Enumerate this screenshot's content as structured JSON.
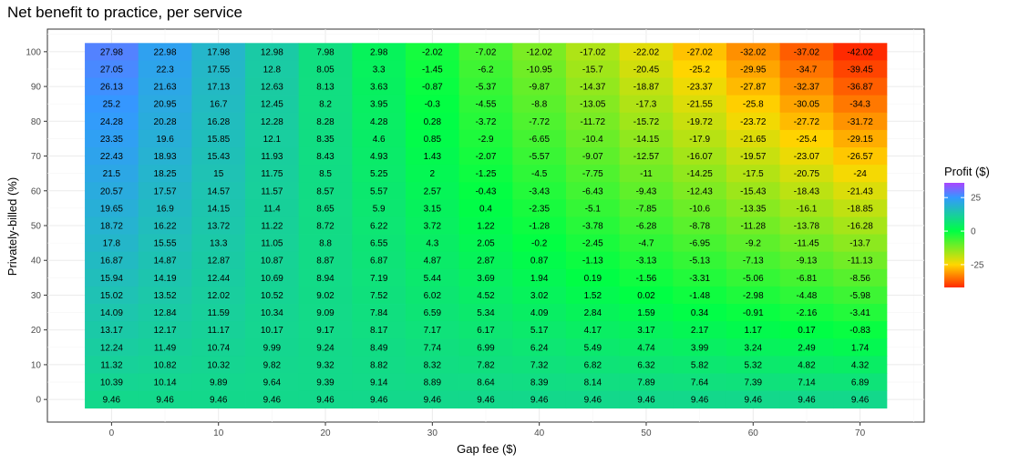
{
  "chart_data": {
    "type": "heatmap",
    "title": "Net benefit to practice, per service",
    "xlabel": "Gap fee ($)",
    "ylabel": "Privately-billed (%)",
    "x": [
      0,
      5,
      10,
      15,
      20,
      25,
      30,
      35,
      40,
      45,
      50,
      55,
      60,
      65,
      70
    ],
    "y": [
      0,
      5,
      10,
      15,
      20,
      25,
      30,
      35,
      40,
      45,
      50,
      55,
      60,
      65,
      70,
      75,
      80,
      85,
      90,
      95,
      100
    ],
    "x_ticks": [
      0,
      10,
      20,
      30,
      40,
      50,
      60,
      70
    ],
    "x_tick_labels": [
      "0",
      "10",
      "20",
      "30",
      "40",
      "50",
      "60",
      "70"
    ],
    "y_ticks": [
      0,
      10,
      20,
      30,
      40,
      50,
      60,
      70,
      80,
      90,
      100
    ],
    "y_tick_labels": [
      "0",
      "10",
      "20",
      "30",
      "40",
      "50",
      "60",
      "70",
      "80",
      "90",
      "100"
    ],
    "xlim": [
      -6,
      76
    ],
    "ylim": [
      -6.5,
      106.5
    ],
    "grid": true,
    "legend": {
      "title": "Profit ($)",
      "position": "right",
      "ticks": [
        25,
        0,
        -25
      ],
      "tick_labels": [
        "25",
        "0",
        "-25"
      ],
      "range": [
        -42.02,
        36
      ]
    },
    "colors": {
      "low": "#ff2a00",
      "mid_low": "#ffd700",
      "zero": "#00ff44",
      "mid_high": "#3399ff",
      "high": "#aa44ff"
    },
    "rows": [
      {
        "y": 100,
        "labels": [
          "27.98",
          "22.98",
          "17.98",
          "12.98",
          "7.98",
          "2.98",
          "-2.02",
          "-7.02",
          "-12.02",
          "-17.02",
          "-22.02",
          "-27.02",
          "-32.02",
          "-37.02",
          "-42.02"
        ]
      },
      {
        "y": 95,
        "labels": [
          "27.05",
          "22.3",
          "17.55",
          "12.8",
          "8.05",
          "3.3",
          "-1.45",
          "-6.2",
          "-10.95",
          "-15.7",
          "-20.45",
          "-25.2",
          "-29.95",
          "-34.7",
          "-39.45"
        ]
      },
      {
        "y": 90,
        "labels": [
          "26.13",
          "21.63",
          "17.13",
          "12.63",
          "8.13",
          "3.63",
          "-0.87",
          "-5.37",
          "-9.87",
          "-14.37",
          "-18.87",
          "-23.37",
          "-27.87",
          "-32.37",
          "-36.87"
        ]
      },
      {
        "y": 85,
        "labels": [
          "25.2",
          "20.95",
          "16.7",
          "12.45",
          "8.2",
          "3.95",
          "-0.3",
          "-4.55",
          "-8.8",
          "-13.05",
          "-17.3",
          "-21.55",
          "-25.8",
          "-30.05",
          "-34.3"
        ]
      },
      {
        "y": 80,
        "labels": [
          "24.28",
          "20.28",
          "16.28",
          "12.28",
          "8.28",
          "4.28",
          "0.28",
          "-3.72",
          "-7.72",
          "-11.72",
          "-15.72",
          "-19.72",
          "-23.72",
          "-27.72",
          "-31.72"
        ]
      },
      {
        "y": 75,
        "labels": [
          "23.35",
          "19.6",
          "15.85",
          "12.1",
          "8.35",
          "4.6",
          "0.85",
          "-2.9",
          "-6.65",
          "-10.4",
          "-14.15",
          "-17.9",
          "-21.65",
          "-25.4",
          "-29.15"
        ]
      },
      {
        "y": 70,
        "labels": [
          "22.43",
          "18.93",
          "15.43",
          "11.93",
          "8.43",
          "4.93",
          "1.43",
          "-2.07",
          "-5.57",
          "-9.07",
          "-12.57",
          "-16.07",
          "-19.57",
          "-23.07",
          "-26.57"
        ]
      },
      {
        "y": 65,
        "labels": [
          "21.5",
          "18.25",
          "15",
          "11.75",
          "8.5",
          "5.25",
          "2",
          "-1.25",
          "-4.5",
          "-7.75",
          "-11",
          "-14.25",
          "-17.5",
          "-20.75",
          "-24"
        ]
      },
      {
        "y": 60,
        "labels": [
          "20.57",
          "17.57",
          "14.57",
          "11.57",
          "8.57",
          "5.57",
          "2.57",
          "-0.43",
          "-3.43",
          "-6.43",
          "-9.43",
          "-12.43",
          "-15.43",
          "-18.43",
          "-21.43"
        ]
      },
      {
        "y": 55,
        "labels": [
          "19.65",
          "16.9",
          "14.15",
          "11.4",
          "8.65",
          "5.9",
          "3.15",
          "0.4",
          "-2.35",
          "-5.1",
          "-7.85",
          "-10.6",
          "-13.35",
          "-16.1",
          "-18.85"
        ]
      },
      {
        "y": 50,
        "labels": [
          "18.72",
          "16.22",
          "13.72",
          "11.22",
          "8.72",
          "6.22",
          "3.72",
          "1.22",
          "-1.28",
          "-3.78",
          "-6.28",
          "-8.78",
          "-11.28",
          "-13.78",
          "-16.28"
        ]
      },
      {
        "y": 45,
        "labels": [
          "17.8",
          "15.55",
          "13.3",
          "11.05",
          "8.8",
          "6.55",
          "4.3",
          "2.05",
          "-0.2",
          "-2.45",
          "-4.7",
          "-6.95",
          "-9.2",
          "-11.45",
          "-13.7"
        ]
      },
      {
        "y": 40,
        "labels": [
          "16.87",
          "14.87",
          "12.87",
          "10.87",
          "8.87",
          "6.87",
          "4.87",
          "2.87",
          "0.87",
          "-1.13",
          "-3.13",
          "-5.13",
          "-7.13",
          "-9.13",
          "-11.13"
        ]
      },
      {
        "y": 35,
        "labels": [
          "15.94",
          "14.19",
          "12.44",
          "10.69",
          "8.94",
          "7.19",
          "5.44",
          "3.69",
          "1.94",
          "0.19",
          "-1.56",
          "-3.31",
          "-5.06",
          "-6.81",
          "-8.56"
        ]
      },
      {
        "y": 30,
        "labels": [
          "15.02",
          "13.52",
          "12.02",
          "10.52",
          "9.02",
          "7.52",
          "6.02",
          "4.52",
          "3.02",
          "1.52",
          "0.02",
          "-1.48",
          "-2.98",
          "-4.48",
          "-5.98"
        ]
      },
      {
        "y": 25,
        "labels": [
          "14.09",
          "12.84",
          "11.59",
          "10.34",
          "9.09",
          "7.84",
          "6.59",
          "5.34",
          "4.09",
          "2.84",
          "1.59",
          "0.34",
          "-0.91",
          "-2.16",
          "-3.41"
        ]
      },
      {
        "y": 20,
        "labels": [
          "13.17",
          "12.17",
          "11.17",
          "10.17",
          "9.17",
          "8.17",
          "7.17",
          "6.17",
          "5.17",
          "4.17",
          "3.17",
          "2.17",
          "1.17",
          "0.17",
          "-0.83"
        ]
      },
      {
        "y": 15,
        "labels": [
          "12.24",
          "11.49",
          "10.74",
          "9.99",
          "9.24",
          "8.49",
          "7.74",
          "6.99",
          "6.24",
          "5.49",
          "4.74",
          "3.99",
          "3.24",
          "2.49",
          "1.74"
        ]
      },
      {
        "y": 10,
        "labels": [
          "11.32",
          "10.82",
          "10.32",
          "9.82",
          "9.32",
          "8.82",
          "8.32",
          "7.82",
          "7.32",
          "6.82",
          "6.32",
          "5.82",
          "5.32",
          "4.82",
          "4.32"
        ]
      },
      {
        "y": 5,
        "labels": [
          "10.39",
          "10.14",
          "9.89",
          "9.64",
          "9.39",
          "9.14",
          "8.89",
          "8.64",
          "8.39",
          "8.14",
          "7.89",
          "7.64",
          "7.39",
          "7.14",
          "6.89"
        ]
      },
      {
        "y": 0,
        "labels": [
          "9.46",
          "9.46",
          "9.46",
          "9.46",
          "9.46",
          "9.46",
          "9.46",
          "9.46",
          "9.46",
          "9.46",
          "9.46",
          "9.46",
          "9.46",
          "9.46",
          "9.46"
        ]
      }
    ]
  }
}
